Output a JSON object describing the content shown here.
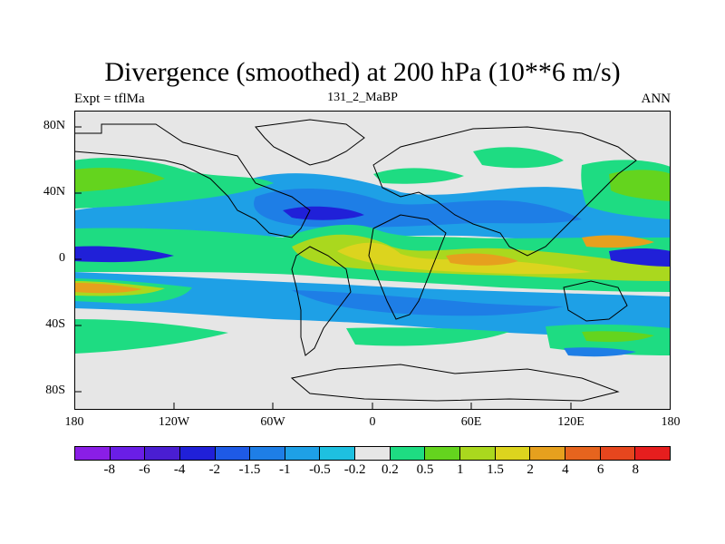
{
  "figure": {
    "title": "Divergence (smoothed) at 200 hPa (10**6 m/s)",
    "left_subtitle": "Expt = tflMa",
    "center_subtitle": "131_2_MaBP",
    "right_subtitle": "ANN"
  },
  "axes": {
    "y_ticks": [
      "80N",
      "40N",
      "0",
      "40S",
      "80S"
    ],
    "x_ticks": [
      "180",
      "120W",
      "60W",
      "0",
      "60E",
      "120E",
      "180"
    ]
  },
  "colorbar": {
    "labels": [
      "-8",
      "-6",
      "-4",
      "-2",
      "-1.5",
      "-1",
      "-0.5",
      "-0.2",
      "0.2",
      "0.5",
      "1",
      "1.5",
      "2",
      "4",
      "6",
      "8"
    ],
    "colors": [
      "#8a1ee6",
      "#6a1ee6",
      "#4a1ed2",
      "#2020d8",
      "#1e5ae6",
      "#1e7ee6",
      "#1ea0e6",
      "#1ec0e0",
      "#e6e6e6",
      "#1edc82",
      "#64d41e",
      "#aad81e",
      "#dcd41e",
      "#e6a01e",
      "#e6641e",
      "#e6461e",
      "#e61e1e"
    ]
  },
  "colors": {
    "background_field": "#e6e6e6",
    "contour_line": "#000000"
  }
}
